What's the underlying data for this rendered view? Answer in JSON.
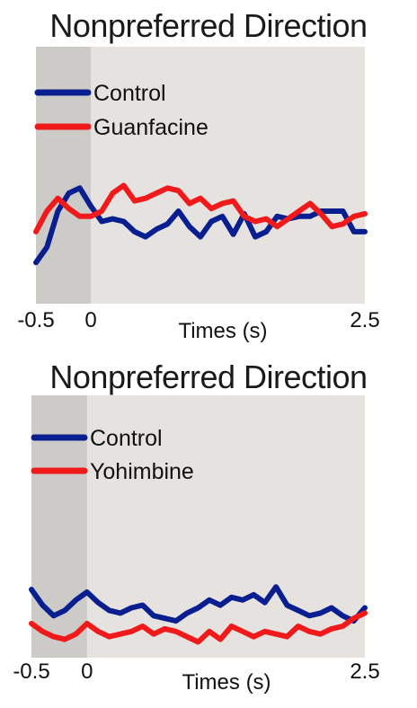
{
  "chart_data": [
    {
      "type": "line",
      "title": "Nonpreferred Direction",
      "xlabel": "Times (s)",
      "ylabel": "",
      "xlim": [
        -0.5,
        2.5
      ],
      "ylim": [
        0,
        10
      ],
      "x_tick_labels": [
        "-0.5",
        "0",
        "2.5"
      ],
      "shaded_interval": [
        -0.5,
        0
      ],
      "legend_placement": "top-left",
      "colors": {
        "background": "#e5e2df",
        "shaded": "#cdcbc8",
        "Control": "#0a1f8f",
        "Guanfacine": "#f11a1a"
      },
      "x": [
        -0.5,
        -0.4,
        -0.3,
        -0.2,
        -0.1,
        0.0,
        0.1,
        0.2,
        0.3,
        0.4,
        0.5,
        0.6,
        0.7,
        0.8,
        0.9,
        1.0,
        1.1,
        1.2,
        1.3,
        1.4,
        1.5,
        1.6,
        1.7,
        1.8,
        1.9,
        2.0,
        2.1,
        2.2,
        2.3,
        2.4,
        2.5
      ],
      "series": [
        {
          "name": "Control",
          "values": [
            1.6,
            2.2,
            3.6,
            4.3,
            4.5,
            3.8,
            3.2,
            3.3,
            3.2,
            2.8,
            2.6,
            2.9,
            3.1,
            3.6,
            3.0,
            2.6,
            3.2,
            3.4,
            2.7,
            3.5,
            2.6,
            2.8,
            3.4,
            3.3,
            3.4,
            3.4,
            3.6,
            3.6,
            3.6,
            2.8,
            2.8
          ]
        },
        {
          "name": "Guanfacine",
          "values": [
            2.8,
            3.6,
            4.1,
            3.7,
            3.4,
            3.4,
            3.6,
            4.3,
            4.6,
            4.0,
            4.1,
            4.3,
            4.5,
            4.4,
            3.9,
            4.1,
            3.7,
            3.9,
            4.0,
            3.4,
            3.2,
            3.3,
            3.0,
            3.3,
            3.6,
            3.9,
            3.5,
            3.0,
            3.1,
            3.4,
            3.5
          ]
        }
      ]
    },
    {
      "type": "line",
      "title": "Nonpreferred Direction",
      "xlabel": "Times (s)",
      "ylabel": "",
      "xlim": [
        -0.5,
        2.5
      ],
      "ylim": [
        0,
        10
      ],
      "x_tick_labels": [
        "-0.5",
        "0",
        "2.5"
      ],
      "shaded_interval": [
        -0.5,
        0
      ],
      "legend_placement": "top-left",
      "colors": {
        "background": "#e5e2df",
        "shaded": "#cdcbc8",
        "Control": "#0a1f8f",
        "Yohimbine": "#f11a1a"
      },
      "x": [
        -0.5,
        -0.4,
        -0.3,
        -0.2,
        -0.1,
        0.0,
        0.1,
        0.2,
        0.3,
        0.4,
        0.5,
        0.6,
        0.7,
        0.8,
        0.9,
        1.0,
        1.1,
        1.2,
        1.3,
        1.4,
        1.5,
        1.6,
        1.7,
        1.8,
        1.9,
        2.0,
        2.1,
        2.2,
        2.3,
        2.4,
        2.5
      ],
      "series": [
        {
          "name": "Control",
          "values": [
            2.6,
            2.0,
            1.6,
            1.8,
            2.2,
            2.5,
            2.1,
            1.8,
            1.7,
            1.9,
            2.0,
            1.6,
            1.5,
            1.4,
            1.7,
            1.9,
            2.2,
            2.0,
            2.3,
            2.2,
            2.4,
            2.1,
            2.7,
            2.0,
            1.8,
            1.6,
            1.7,
            1.9,
            1.6,
            1.4,
            1.9
          ]
        },
        {
          "name": "Yohimbine",
          "values": [
            1.3,
            1.0,
            0.8,
            0.7,
            0.9,
            1.3,
            1.0,
            0.8,
            0.9,
            1.0,
            1.2,
            0.9,
            1.1,
            1.0,
            0.8,
            0.6,
            1.0,
            0.7,
            1.2,
            1.0,
            0.8,
            1.0,
            0.9,
            0.8,
            1.2,
            1.0,
            0.9,
            1.1,
            1.2,
            1.5,
            1.7
          ]
        }
      ]
    }
  ]
}
